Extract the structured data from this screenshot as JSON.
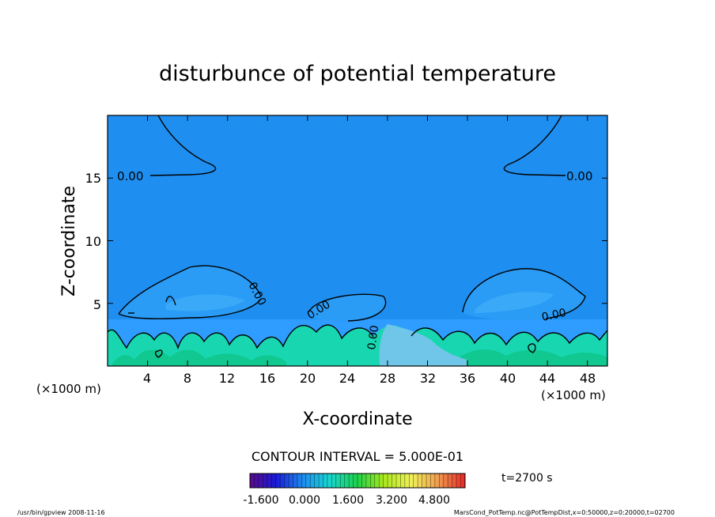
{
  "chart_data": {
    "type": "heatmap",
    "title": "disturbunce of potential temperature",
    "xlabel": "X-coordinate",
    "ylabel": "Z-coordinate",
    "x_unit": "(×1000 m)",
    "z_unit": "(×1000 m)",
    "xlim": [
      0,
      50
    ],
    "ylim": [
      0,
      20
    ],
    "x_ticks": [
      "4",
      "8",
      "12",
      "16",
      "20",
      "24",
      "28",
      "32",
      "36",
      "40",
      "44",
      "48"
    ],
    "x_tick_values": [
      4,
      8,
      12,
      16,
      20,
      24,
      28,
      32,
      36,
      40,
      44,
      48
    ],
    "y_ticks": [
      "5",
      "10",
      "15"
    ],
    "y_tick_values": [
      5,
      10,
      15
    ],
    "contour_interval_text": "CONTOUR INTERVAL = 5.000E-01",
    "contour_labels": [
      "0.00",
      "0.00",
      "0.00",
      "0.00",
      "0.00",
      "0.00",
      "0.00"
    ],
    "time_label": "t=2700 s",
    "colorbar": {
      "min": -1.6,
      "max": 6.4,
      "tick_labels": [
        "-1.600",
        "0.000",
        "1.600",
        "3.200",
        "4.800"
      ],
      "tick_values": [
        -1.6,
        0.0,
        1.6,
        3.2,
        4.8
      ]
    },
    "colors": {
      "background_field": "#1e8ff0",
      "lower_layer": "#2f9cff",
      "warm_plumes": "#18d6b0",
      "warmest": "#0fc88a"
    }
  },
  "footer": {
    "left": "/usr/bin/gpview   2008-11-16",
    "right": "MarsCond_PotTemp.nc@PotTempDist,x=0:50000,z=0:20000,t=02700"
  }
}
